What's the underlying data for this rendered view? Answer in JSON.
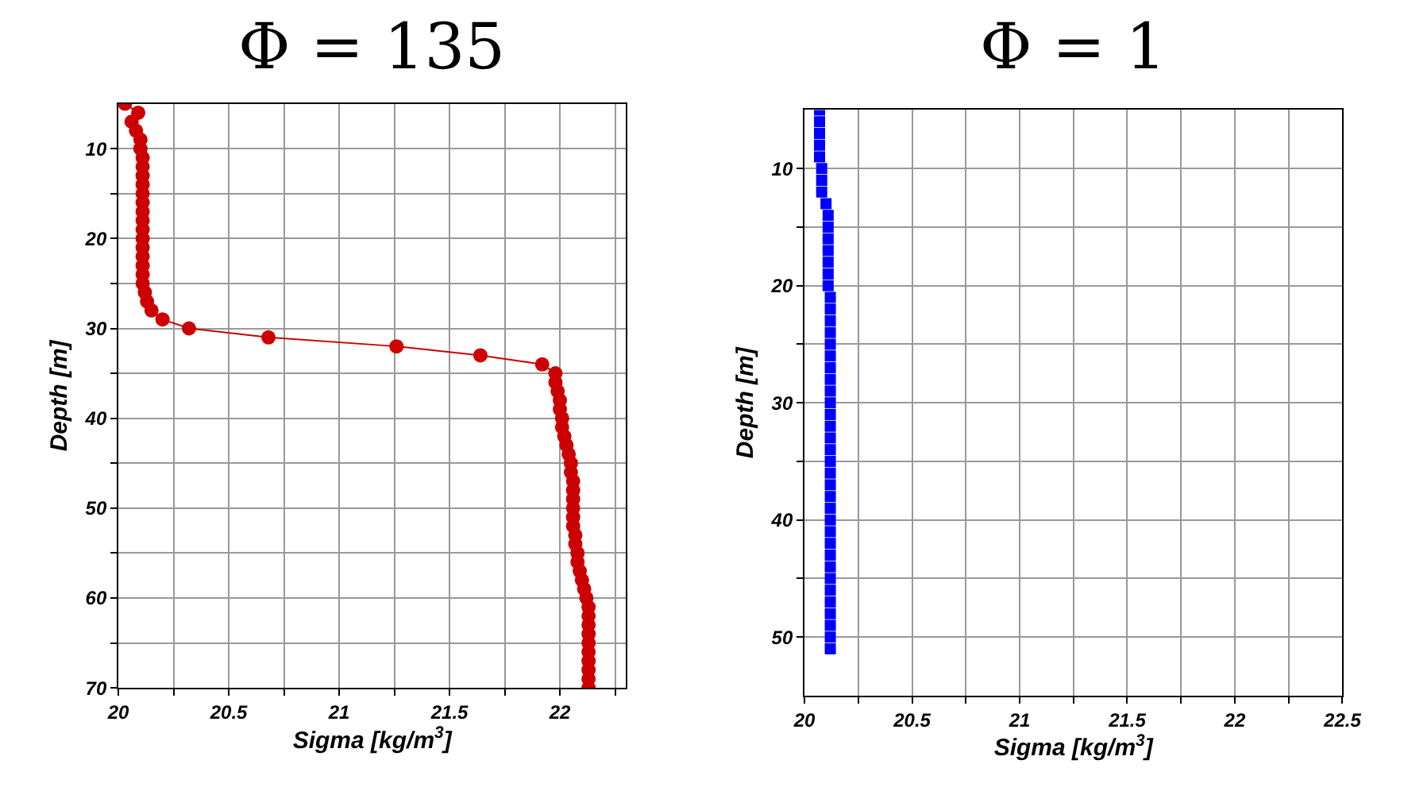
{
  "chart_data": [
    {
      "type": "line",
      "title": "Φ = 135",
      "xlabel": "Sigma [kg/m$^{3}$]",
      "ylabel": "Depth [m]",
      "marker": "circle",
      "line_style": "solid",
      "grid": true,
      "xlim": [
        20,
        22.3
      ],
      "xticks": [
        20,
        {
          "value": 20.25,
          "label": null
        },
        20.5,
        {
          "value": 20.75,
          "label": null
        },
        21,
        {
          "value": 21.25,
          "label": null
        },
        21.5,
        {
          "value": 21.75,
          "label": null
        },
        22,
        {
          "value": 22.25,
          "label": null
        }
      ],
      "ylim": [
        70,
        5
      ],
      "yticks": [
        10,
        {
          "value": 15,
          "label": null
        },
        20,
        {
          "value": 25,
          "label": null
        },
        30,
        {
          "value": 35,
          "label": null
        },
        40,
        {
          "value": 45,
          "label": null
        },
        50,
        {
          "value": 55,
          "label": null
        },
        60,
        {
          "value": 65,
          "label": null
        },
        70
      ],
      "series": [
        {
          "color": "#cc0000",
          "x": [
            20.03,
            20.09,
            20.06,
            20.08,
            20.1,
            20.1,
            20.11,
            20.11,
            20.11,
            20.11,
            20.11,
            20.11,
            20.11,
            20.11,
            20.11,
            20.11,
            20.11,
            20.11,
            20.11,
            20.11,
            20.11,
            20.12,
            20.13,
            20.15,
            20.2,
            20.32,
            20.68,
            21.26,
            21.64,
            21.92,
            21.98,
            21.98,
            21.99,
            22.0,
            22.0,
            22.01,
            22.01,
            22.02,
            22.03,
            22.04,
            22.05,
            22.05,
            22.06,
            22.06,
            22.06,
            22.06,
            22.06,
            22.06,
            22.07,
            22.07,
            22.08,
            22.08,
            22.09,
            22.1,
            22.11,
            22.12,
            22.13,
            22.13,
            22.13,
            22.13,
            22.13,
            22.13,
            22.13,
            22.13,
            22.13,
            22.13
          ],
          "values": [
            5,
            6,
            7,
            8,
            9,
            10,
            11,
            12,
            13,
            14,
            15,
            16,
            17,
            18,
            19,
            20,
            21,
            22,
            23,
            24,
            25,
            26,
            27,
            28,
            29,
            30,
            31,
            32,
            33,
            34,
            35,
            36,
            37,
            38,
            39,
            40,
            41,
            42,
            43,
            44,
            45,
            46,
            47,
            48,
            49,
            50,
            51,
            52,
            53,
            54,
            55,
            56,
            57,
            58,
            59,
            60,
            61,
            62,
            63,
            64,
            65,
            66,
            67,
            68,
            69,
            70
          ]
        }
      ]
    },
    {
      "type": "scatter",
      "title": "Φ = 1",
      "xlabel": "Sigma [kg/m$^{3}$]",
      "ylabel": "Depth [m]",
      "marker": "square",
      "grid": true,
      "xlim": [
        20,
        22.5
      ],
      "xticks": [
        20,
        {
          "value": 20.25,
          "label": null
        },
        20.5,
        {
          "value": 20.75,
          "label": null
        },
        21,
        {
          "value": 21.25,
          "label": null
        },
        21.5,
        {
          "value": 21.75,
          "label": null
        },
        22,
        {
          "value": 22.25,
          "label": null
        },
        22.5
      ],
      "ylim": [
        55,
        5
      ],
      "yticks": [
        10,
        {
          "value": 15,
          "label": null
        },
        20,
        {
          "value": 25,
          "label": null
        },
        30,
        {
          "value": 35,
          "label": null
        },
        40,
        {
          "value": 45,
          "label": null
        },
        50
      ],
      "series": [
        {
          "color": "#0000ff",
          "x": [
            20.07,
            20.07,
            20.07,
            20.07,
            20.07,
            20.08,
            20.08,
            20.08,
            20.1,
            20.11,
            20.11,
            20.11,
            20.11,
            20.11,
            20.11,
            20.11,
            20.12,
            20.12,
            20.12,
            20.12,
            20.12,
            20.12,
            20.12,
            20.12,
            20.12,
            20.12,
            20.12,
            20.12,
            20.12,
            20.12,
            20.12,
            20.12,
            20.12,
            20.12,
            20.12,
            20.12,
            20.12,
            20.12,
            20.12,
            20.12,
            20.12,
            20.12,
            20.12,
            20.12,
            20.12,
            20.12,
            20.12
          ],
          "values": [
            5,
            6,
            7,
            8,
            9,
            10,
            11,
            12,
            13,
            14,
            15,
            16,
            17,
            18,
            19,
            20,
            21,
            22,
            23,
            24,
            25,
            26,
            27,
            28,
            29,
            30,
            31,
            32,
            33,
            34,
            35,
            36,
            37,
            38,
            39,
            40,
            41,
            42,
            43,
            44,
            45,
            46,
            47,
            48,
            49,
            50,
            51
          ]
        }
      ]
    }
  ]
}
